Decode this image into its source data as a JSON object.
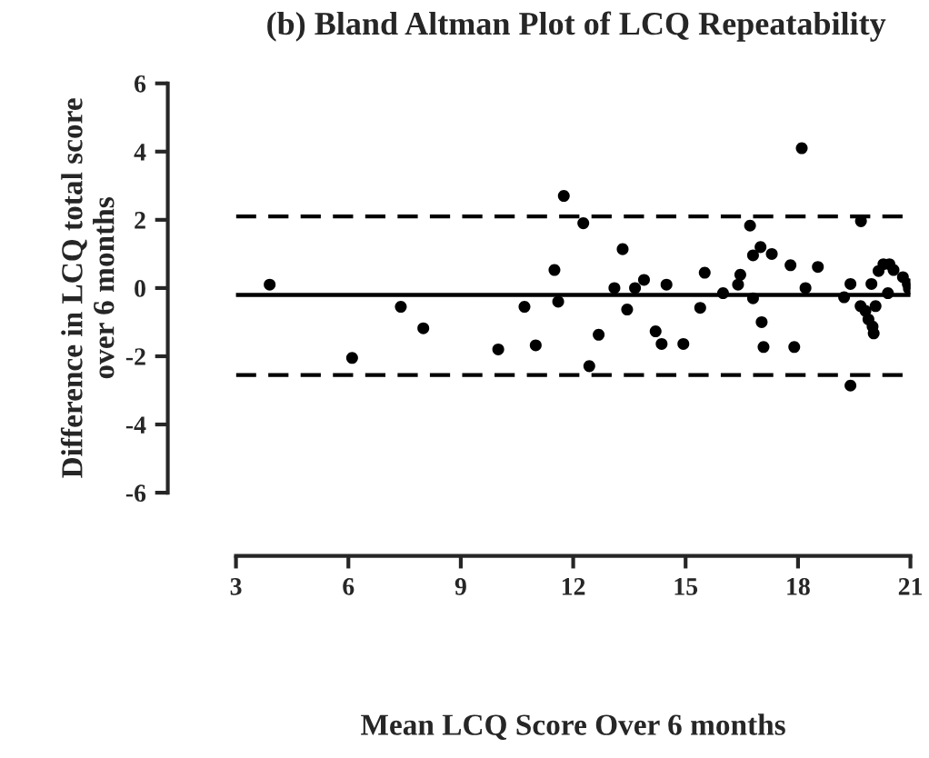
{
  "chart_data": {
    "type": "scatter",
    "title": "(b) Bland Altman Plot of LCQ Repeatability",
    "xlabel": "Mean LCQ Score Over 6 months",
    "ylabel": "Difference in LCQ total score\nover 6 months",
    "x": [
      3.9,
      6.1,
      7.4,
      8.0,
      10.0,
      10.7,
      11.0,
      11.5,
      11.6,
      11.75,
      12.27,
      12.68,
      12.43,
      13.32,
      13.1,
      13.44,
      13.65,
      13.89,
      14.2,
      14.36,
      14.49,
      14.94,
      15.39,
      15.51,
      16.0,
      16.4,
      16.46,
      16.72,
      16.8,
      17.0,
      17.3,
      16.8,
      17.03,
      17.08,
      17.8,
      17.9,
      18.1,
      18.2,
      18.53,
      19.23,
      19.31,
      19.4,
      19.4,
      19.68,
      19.67,
      19.8,
      19.96,
      20.07,
      19.88,
      19.99,
      20.02,
      20.15,
      20.28,
      20.44,
      20.55,
      20.4,
      20.8,
      20.93,
      20.96
    ],
    "series": [
      {
        "color": "#000000",
        "values": [
          0.1,
          -2.05,
          -0.55,
          -1.18,
          -1.8,
          -0.55,
          -1.68,
          0.53,
          -0.4,
          2.7,
          1.9,
          -1.37,
          -2.29,
          1.14,
          0.0,
          -0.63,
          0.0,
          0.24,
          -1.27,
          -1.64,
          0.1,
          -1.64,
          -0.58,
          0.45,
          -0.15,
          0.1,
          0.39,
          1.83,
          0.96,
          1.2,
          1.0,
          -0.3,
          -1.0,
          -1.73,
          0.67,
          -1.73,
          4.1,
          0.0,
          0.62,
          -0.27,
          null,
          0.12,
          -2.86,
          1.96,
          -0.53,
          -0.67,
          0.12,
          -0.53,
          -0.92,
          -1.13,
          -1.33,
          0.5,
          0.7,
          0.7,
          0.53,
          -0.15,
          0.32,
          0.12,
          -0.02
        ]
      }
    ],
    "marker": "circle",
    "grid": false,
    "legend": false,
    "xlim": [
      3,
      21
    ],
    "xticks": [
      3,
      6,
      9,
      12,
      15,
      18,
      21
    ],
    "ylim": [
      -6,
      6
    ],
    "yticks": [
      -6,
      -4,
      -2,
      0,
      2,
      4,
      6
    ],
    "ref_lines": [
      {
        "axis": "y",
        "value": 2.1,
        "line_style": "dashed",
        "color": "#000000"
      },
      {
        "axis": "y",
        "value": -0.2,
        "line_style": "solid",
        "color": "#000000"
      },
      {
        "axis": "y",
        "value": -2.55,
        "line_style": "dashed",
        "color": "#000000"
      }
    ]
  }
}
